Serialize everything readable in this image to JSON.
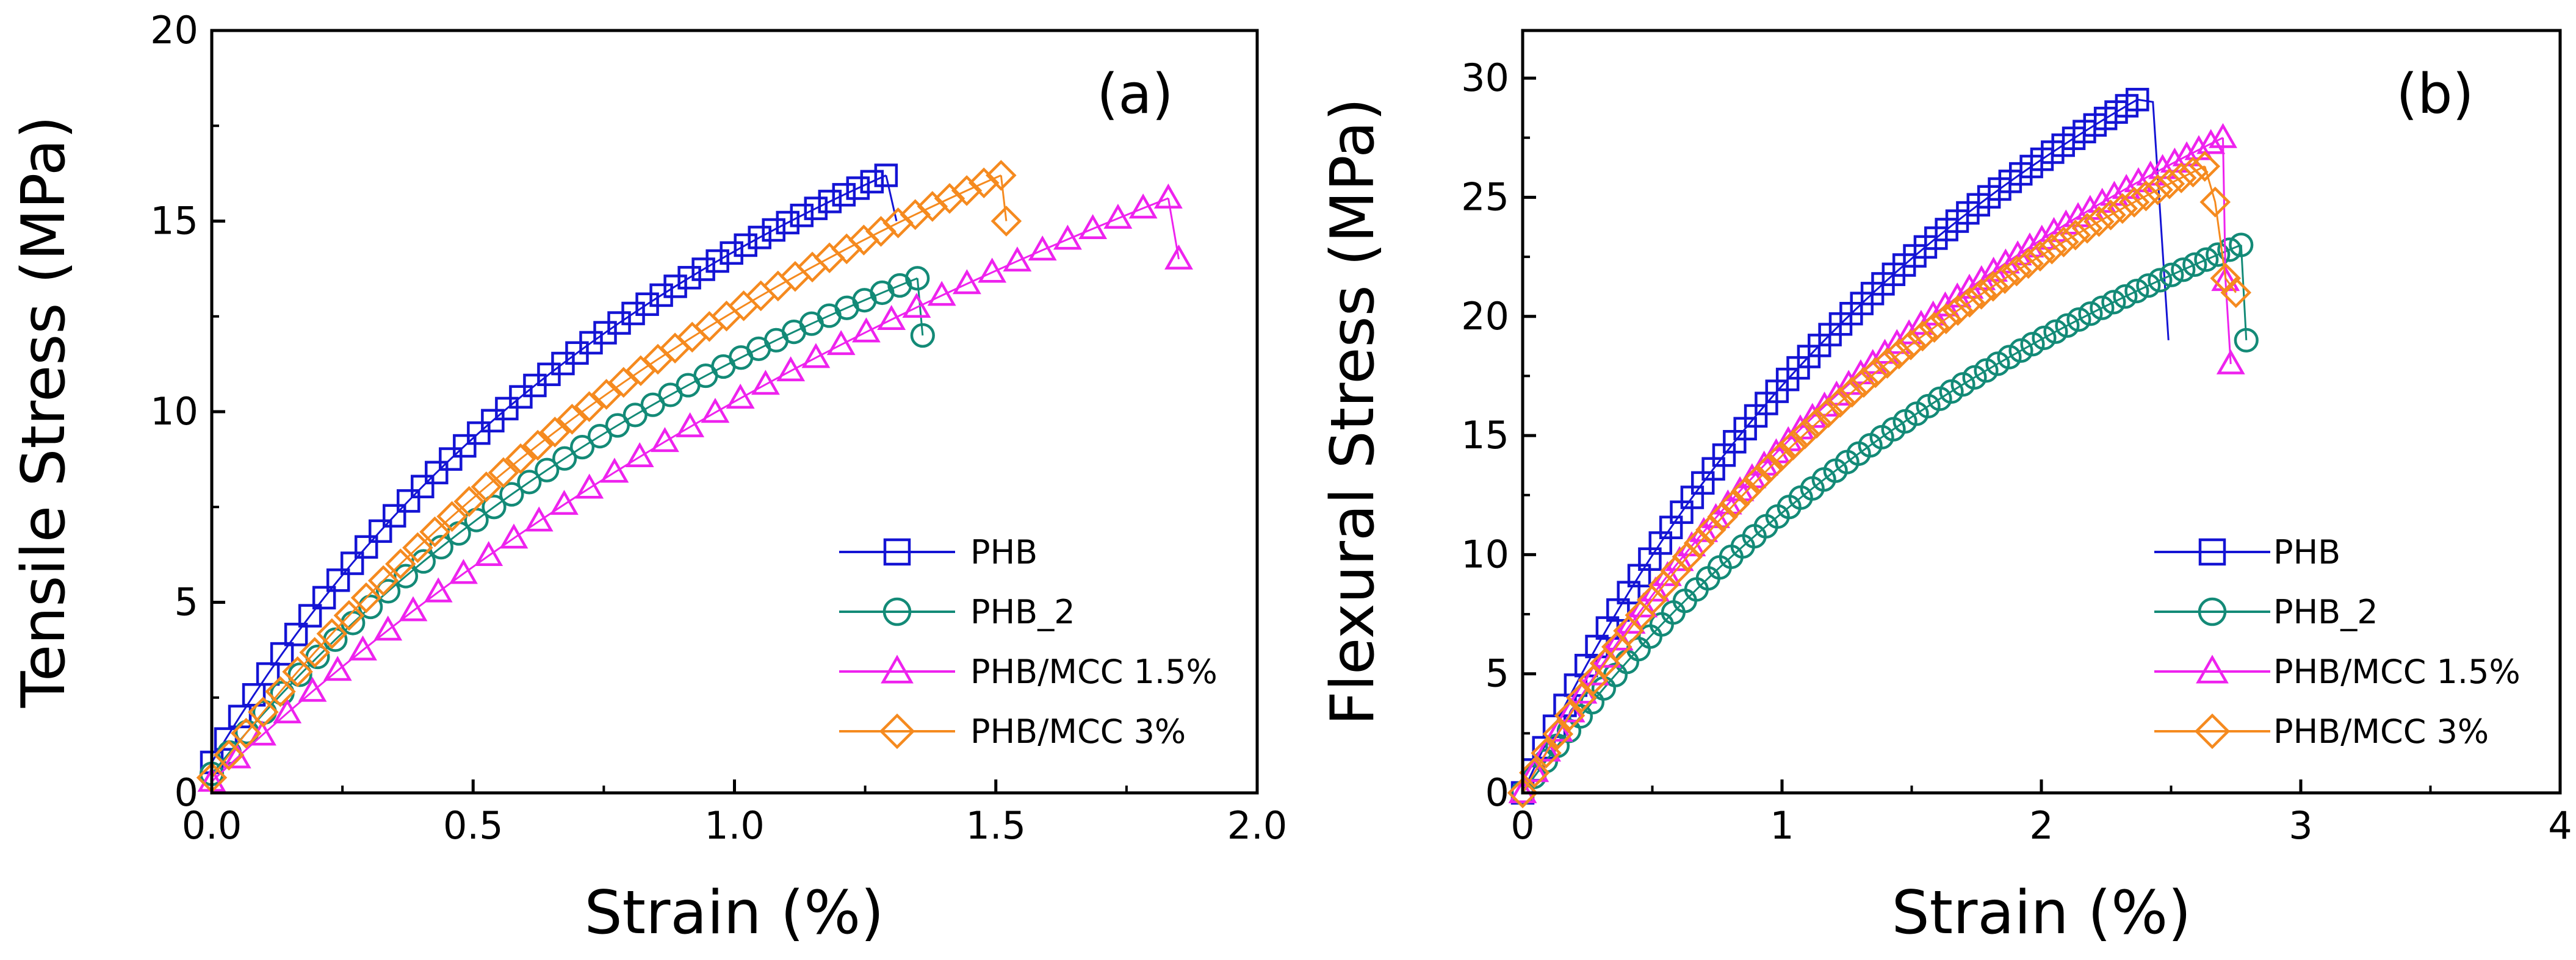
{
  "chart_data": [
    {
      "type": "scatter",
      "panel_label": "(a)",
      "xlabel": "Strain (%)",
      "ylabel": "Tensile Stress (MPa)",
      "xlim": [
        0,
        2.0
      ],
      "ylim": [
        0,
        20
      ],
      "xticks": [
        0.0,
        0.5,
        1.0,
        1.5,
        2.0
      ],
      "xtick_labels": [
        "0.0",
        "0.5",
        "1.0",
        "1.5",
        "2.0"
      ],
      "yticks": [
        0,
        5,
        10,
        15,
        20
      ],
      "ytick_labels": [
        "0",
        "5",
        "10",
        "15",
        "20"
      ],
      "legend_position": "bottom-right",
      "series": [
        {
          "name": "PHB",
          "color": "#1414d4",
          "marker": "square",
          "curve": {
            "xmax": 1.29,
            "ymax": 16.2,
            "alpha": 0.95,
            "start": 0.8
          },
          "n": 48,
          "drop": [
            [
              1.29,
              16.2
            ],
            [
              1.31,
              15.0
            ]
          ],
          "drop_marker": false
        },
        {
          "name": "PHB_2",
          "color": "#138a77",
          "marker": "circle",
          "curve": {
            "xmax": 1.35,
            "ymax": 13.5,
            "alpha": 0.75,
            "start": 0.5
          },
          "n": 40,
          "drop": [
            [
              1.35,
              13.5
            ],
            [
              1.36,
              12.0
            ]
          ],
          "drop_marker": true
        },
        {
          "name": "PHB/MCC 1.5%",
          "color": "#ee22ee",
          "marker": "triangle",
          "curve": {
            "xmax": 1.83,
            "ymax": 15.6,
            "alpha": 0.55,
            "start": 0.3
          },
          "n": 38,
          "drop": [
            [
              1.83,
              15.6
            ],
            [
              1.85,
              14.0
            ]
          ],
          "drop_marker": true
        },
        {
          "name": "PHB/MCC 3%",
          "color": "#f58a1f",
          "marker": "diamond",
          "curve": {
            "xmax": 1.51,
            "ymax": 16.2,
            "alpha": 0.75,
            "start": 0.4
          },
          "n": 46,
          "drop": [
            [
              1.51,
              16.2
            ],
            [
              1.52,
              15.0
            ]
          ],
          "drop_marker": true
        }
      ]
    },
    {
      "type": "scatter",
      "panel_label": "(b)",
      "xlabel": "Strain (%)",
      "ylabel": "Flexural Stress (MPa)",
      "xlim": [
        0,
        4
      ],
      "ylim": [
        0,
        32
      ],
      "xticks": [
        0,
        1,
        2,
        3,
        4
      ],
      "xtick_labels": [
        "0",
        "1",
        "2",
        "3",
        "4"
      ],
      "yticks": [
        0,
        5,
        10,
        15,
        20,
        25,
        30
      ],
      "ytick_labels": [
        "0",
        "5",
        "10",
        "15",
        "20",
        "25",
        "30"
      ],
      "legend_position": "bottom-right",
      "series": [
        {
          "name": "PHB",
          "color": "#1414d4",
          "marker": "square",
          "curve": {
            "xmax": 2.37,
            "ymax": 29.1,
            "alpha": 0.95,
            "start": 0.0
          },
          "n": 58,
          "drop": [
            [
              2.37,
              29.1
            ],
            [
              2.43,
              29.0
            ],
            [
              2.49,
              19.0
            ]
          ],
          "drop_marker": false
        },
        {
          "name": "PHB_2",
          "color": "#138a77",
          "marker": "circle",
          "curve": {
            "xmax": 2.77,
            "ymax": 23.0,
            "alpha": 0.85,
            "start": 0.0
          },
          "n": 62,
          "drop": [
            [
              2.77,
              23.0
            ],
            [
              2.79,
              19.0
            ]
          ],
          "drop_marker": true
        },
        {
          "name": "PHB/MCC 1.5%",
          "color": "#ee22ee",
          "marker": "triangle",
          "curve": {
            "xmax": 2.7,
            "ymax": 27.5,
            "alpha": 0.9,
            "start": 0.0
          },
          "n": 58,
          "drop": [
            [
              2.7,
              27.5
            ],
            [
              2.71,
              21.5
            ],
            [
              2.73,
              18.0
            ]
          ],
          "drop_marker": true
        },
        {
          "name": "PHB/MCC 3%",
          "color": "#f58a1f",
          "marker": "diamond",
          "curve": {
            "xmax": 2.63,
            "ymax": 26.3,
            "alpha": 0.9,
            "start": 0.0
          },
          "n": 58,
          "drop": [
            [
              2.63,
              26.3
            ],
            [
              2.67,
              24.8
            ],
            [
              2.71,
              21.6
            ],
            [
              2.75,
              21.0
            ]
          ],
          "drop_marker": true
        }
      ]
    }
  ]
}
